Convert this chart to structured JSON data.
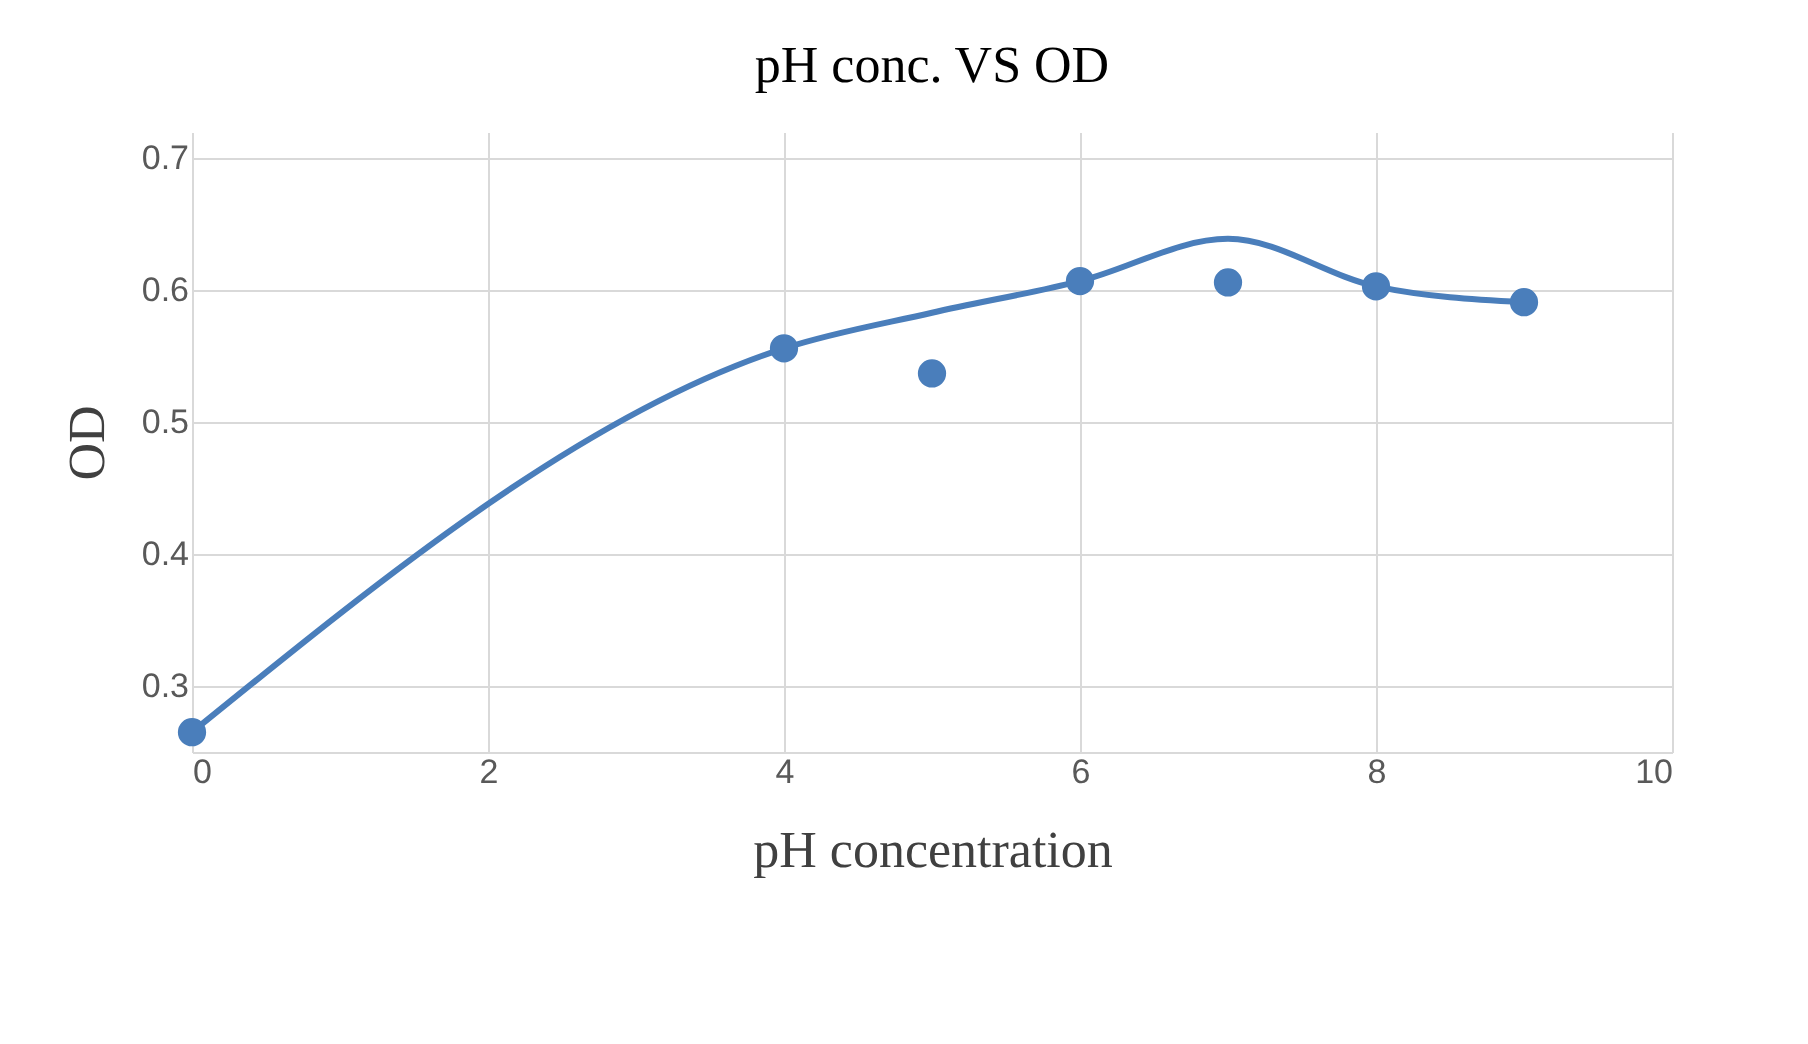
{
  "chart_data": {
    "type": "scatter",
    "title": "pH conc. VS OD",
    "xlabel": "pH concentration",
    "ylabel": "OD",
    "xlim": [
      0,
      10
    ],
    "xticks": [
      0,
      2,
      4,
      6,
      8,
      10
    ],
    "ylim": [
      0.25,
      0.72
    ],
    "yticks": [
      0.3,
      0.4,
      0.5,
      0.6,
      0.7
    ],
    "grid": true,
    "marker": "circle",
    "series": [
      {
        "type": "line",
        "marker": "none",
        "color": "#4a7ebb",
        "x": [
          0,
          4,
          5,
          6,
          7,
          8,
          9
        ],
        "values": [
          0.265,
          0.556,
          0.583,
          0.607,
          0.639,
          0.603,
          0.591
        ]
      },
      {
        "color": "#4a7ebb",
        "x": [
          0,
          4,
          5,
          6,
          7,
          8,
          9
        ],
        "values": [
          0.265,
          0.556,
          0.537,
          0.607,
          0.606,
          0.603,
          0.591
        ]
      }
    ]
  }
}
